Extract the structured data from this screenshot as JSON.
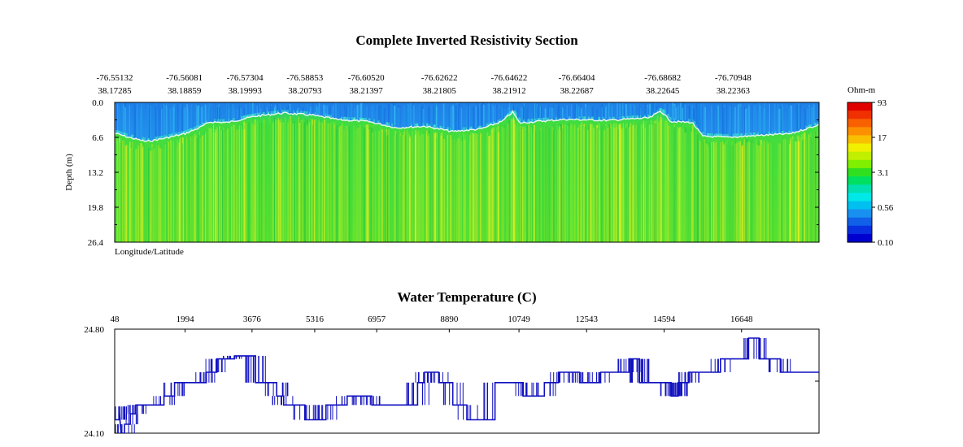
{
  "chart_data": [
    {
      "type": "heatmap",
      "title": "Complete Inverted Resistivity Section",
      "xlabel": "Longitude/Latitude",
      "ylabel": "Depth (m)",
      "ylim": [
        0.0,
        26.4
      ],
      "y_ticks": [
        "0.0",
        "6.6",
        "13.2",
        "19.8",
        "26.4"
      ],
      "x_ticks": [
        {
          "lon": "-76.55132",
          "lat": "38.17285"
        },
        {
          "lon": "-76.56081",
          "lat": "38.18859"
        },
        {
          "lon": "-76.57304",
          "lat": "38.19993"
        },
        {
          "lon": "-76.58853",
          "lat": "38.20793"
        },
        {
          "lon": "-76.60520",
          "lat": "38.21397"
        },
        {
          "lon": "-76.62622",
          "lat": "38.21805"
        },
        {
          "lon": "-76.64622",
          "lat": "38.21912"
        },
        {
          "lon": "-76.66404",
          "lat": "38.22687"
        },
        {
          "lon": "-76.68682",
          "lat": "38.22645"
        },
        {
          "lon": "-76.70948",
          "lat": "38.22363"
        }
      ],
      "colorbar": {
        "label": "Ohm-m",
        "ticks": [
          "93",
          "17",
          "3.1",
          "0.56",
          "0.10"
        ],
        "colors": [
          "#e00000",
          "#f03000",
          "#f86000",
          "#fc9000",
          "#f8c000",
          "#f0f000",
          "#c0f000",
          "#80f000",
          "#30e020",
          "#00e060",
          "#00e0b0",
          "#00e8e8",
          "#00c0f0",
          "#1890f0",
          "#1060e8",
          "#0830e0",
          "#0000d0"
        ]
      },
      "colors": {
        "surface_water": "#1e90ee",
        "upper_water": "#2aaaf0",
        "interface_line": "#e8f8f0",
        "sediment_main": "#38d838",
        "sediment_light": "#a8ee28",
        "sediment_yellow": "#e8f020",
        "sediment_dark": "#20c040",
        "cyan_band": "#40e8c8"
      },
      "interface_depth_m": [
        {
          "pos": 0.0,
          "depth": 5.8
        },
        {
          "pos": 0.02,
          "depth": 6.6
        },
        {
          "pos": 0.045,
          "depth": 7.4
        },
        {
          "pos": 0.07,
          "depth": 6.8
        },
        {
          "pos": 0.1,
          "depth": 5.9
        },
        {
          "pos": 0.12,
          "depth": 4.8
        },
        {
          "pos": 0.135,
          "depth": 3.7
        },
        {
          "pos": 0.16,
          "depth": 3.8
        },
        {
          "pos": 0.2,
          "depth": 2.6
        },
        {
          "pos": 0.24,
          "depth": 2.0
        },
        {
          "pos": 0.28,
          "depth": 2.4
        },
        {
          "pos": 0.32,
          "depth": 3.3
        },
        {
          "pos": 0.36,
          "depth": 3.6
        },
        {
          "pos": 0.4,
          "depth": 4.8
        },
        {
          "pos": 0.44,
          "depth": 4.5
        },
        {
          "pos": 0.48,
          "depth": 5.5
        },
        {
          "pos": 0.52,
          "depth": 5.0
        },
        {
          "pos": 0.55,
          "depth": 3.6
        },
        {
          "pos": 0.565,
          "depth": 1.8
        },
        {
          "pos": 0.575,
          "depth": 3.9
        },
        {
          "pos": 0.6,
          "depth": 3.6
        },
        {
          "pos": 0.64,
          "depth": 3.2
        },
        {
          "pos": 0.7,
          "depth": 3.4
        },
        {
          "pos": 0.76,
          "depth": 2.9
        },
        {
          "pos": 0.775,
          "depth": 1.6
        },
        {
          "pos": 0.79,
          "depth": 3.6
        },
        {
          "pos": 0.82,
          "depth": 3.8
        },
        {
          "pos": 0.835,
          "depth": 6.4
        },
        {
          "pos": 0.87,
          "depth": 6.6
        },
        {
          "pos": 0.92,
          "depth": 6.2
        },
        {
          "pos": 0.96,
          "depth": 5.9
        },
        {
          "pos": 1.0,
          "depth": 4.2
        }
      ]
    },
    {
      "type": "line",
      "title": "Water Temperature (C)",
      "xlabel": "",
      "ylabel": "",
      "x_ticks": [
        "48",
        "1994",
        "3676",
        "5316",
        "6957",
        "8890",
        "10749",
        "12543",
        "14594",
        "16648"
      ],
      "ylim": [
        24.1,
        24.8
      ],
      "y_ticks": [
        "24.80",
        "24.10"
      ],
      "series_color": "#1010c0",
      "series": [
        {
          "name": "Water Temperature",
          "points": [
            [
              0.0,
              24.19
            ],
            [
              0.006,
              24.19
            ],
            [
              0.006,
              24.28
            ],
            [
              0.009,
              24.1
            ],
            [
              0.014,
              24.1
            ],
            [
              0.014,
              24.16
            ],
            [
              0.022,
              24.16
            ],
            [
              0.022,
              24.23
            ],
            [
              0.03,
              24.23
            ],
            [
              0.03,
              24.29
            ],
            [
              0.07,
              24.29
            ],
            [
              0.07,
              24.35
            ],
            [
              0.07,
              24.35
            ],
            [
              0.085,
              24.35
            ],
            [
              0.085,
              24.44
            ],
            [
              0.13,
              24.44
            ],
            [
              0.13,
              24.51
            ],
            [
              0.145,
              24.51
            ],
            [
              0.145,
              24.6
            ],
            [
              0.17,
              24.6
            ],
            [
              0.17,
              24.62
            ],
            [
              0.2,
              24.62
            ],
            [
              0.2,
              24.44
            ],
            [
              0.23,
              24.44
            ],
            [
              0.23,
              24.35
            ],
            [
              0.24,
              24.35
            ],
            [
              0.24,
              24.29
            ],
            [
              0.27,
              24.29
            ],
            [
              0.27,
              24.19
            ],
            [
              0.3,
              24.19
            ],
            [
              0.3,
              24.29
            ],
            [
              0.33,
              24.29
            ],
            [
              0.33,
              24.35
            ],
            [
              0.365,
              24.35
            ],
            [
              0.365,
              24.29
            ],
            [
              0.43,
              24.29
            ],
            [
              0.43,
              24.44
            ],
            [
              0.44,
              24.44
            ],
            [
              0.44,
              24.51
            ],
            [
              0.46,
              24.51
            ],
            [
              0.46,
              24.44
            ],
            [
              0.48,
              24.44
            ],
            [
              0.48,
              24.29
            ],
            [
              0.5,
              24.29
            ],
            [
              0.5,
              24.19
            ],
            [
              0.54,
              24.19
            ],
            [
              0.54,
              24.44
            ],
            [
              0.58,
              24.44
            ],
            [
              0.58,
              24.35
            ],
            [
              0.61,
              24.35
            ],
            [
              0.61,
              24.44
            ],
            [
              0.63,
              24.44
            ],
            [
              0.63,
              24.51
            ],
            [
              0.66,
              24.51
            ],
            [
              0.66,
              24.44
            ],
            [
              0.69,
              24.44
            ],
            [
              0.69,
              24.51
            ],
            [
              0.73,
              24.51
            ],
            [
              0.73,
              24.6
            ],
            [
              0.745,
              24.6
            ],
            [
              0.745,
              24.44
            ],
            [
              0.79,
              24.44
            ],
            [
              0.79,
              24.35
            ],
            [
              0.8,
              24.35
            ],
            [
              0.8,
              24.44
            ],
            [
              0.815,
              24.44
            ],
            [
              0.815,
              24.51
            ],
            [
              0.845,
              24.51
            ],
            [
              0.845,
              24.51
            ],
            [
              0.86,
              24.51
            ],
            [
              0.86,
              24.6
            ],
            [
              0.9,
              24.6
            ],
            [
              0.9,
              24.74
            ],
            [
              0.915,
              24.74
            ],
            [
              0.915,
              24.6
            ],
            [
              0.945,
              24.6
            ],
            [
              0.945,
              24.51
            ],
            [
              1.0,
              24.51
            ]
          ]
        }
      ]
    }
  ]
}
